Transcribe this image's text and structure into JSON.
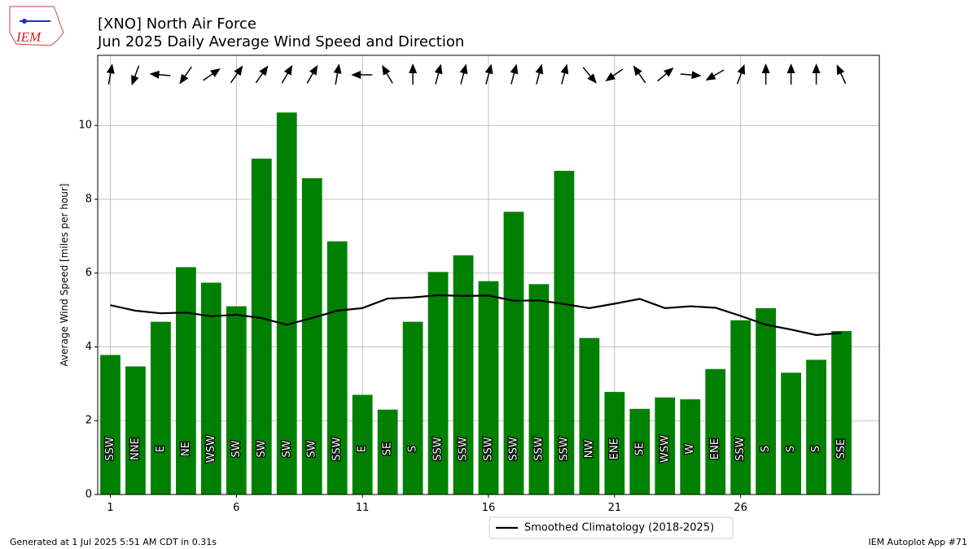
{
  "chart_data": {
    "type": "bar",
    "logo_text": "IEM",
    "title": "[XNO] North Air Force",
    "subtitle": "Jun 2025 Daily Average Wind Speed and Direction",
    "ylabel": "Average Wind Speed [miles per hour]",
    "x": [
      1,
      2,
      3,
      4,
      5,
      6,
      7,
      8,
      9,
      10,
      11,
      12,
      13,
      14,
      15,
      16,
      17,
      18,
      19,
      20,
      21,
      22,
      23,
      24,
      25,
      26,
      27,
      28,
      29,
      30
    ],
    "values": [
      3.78,
      3.47,
      4.68,
      6.16,
      5.74,
      5.1,
      9.1,
      10.35,
      8.57,
      6.86,
      2.7,
      2.3,
      4.68,
      6.03,
      6.48,
      5.78,
      7.66,
      5.7,
      8.77,
      4.24,
      2.78,
      2.32,
      2.63,
      2.58,
      3.4,
      4.72,
      5.05,
      3.3,
      3.65,
      4.43
    ],
    "color": "#008000",
    "direction_labels": [
      "SSW",
      "NNE",
      "E",
      "NE",
      "WSW",
      "SW",
      "SW",
      "SW",
      "SW",
      "SSW",
      "E",
      "SE",
      "S",
      "SSW",
      "SSW",
      "SSW",
      "SSW",
      "SSW",
      "SSW",
      "NW",
      "ENE",
      "SE",
      "WSW",
      "W",
      "ENE",
      "SSW",
      "S",
      "S",
      "S",
      "SSE"
    ],
    "direction_deg": [
      190,
      20,
      95,
      35,
      235,
      215,
      215,
      210,
      210,
      190,
      90,
      150,
      180,
      195,
      195,
      195,
      195,
      195,
      195,
      320,
      55,
      145,
      230,
      275,
      60,
      200,
      180,
      180,
      180,
      155
    ],
    "line": {
      "name": "Smoothed Climatology (2018-2025)",
      "color": "#000000",
      "values": [
        5.13,
        4.98,
        4.91,
        4.93,
        4.83,
        4.87,
        4.78,
        4.6,
        4.78,
        4.98,
        5.05,
        5.31,
        5.34,
        5.4,
        5.38,
        5.39,
        5.25,
        5.26,
        5.16,
        5.05,
        5.17,
        5.3,
        5.05,
        5.1,
        5.06,
        4.84,
        4.6,
        4.47,
        4.32,
        4.38
      ]
    },
    "xlim": [
      0.5,
      31.5
    ],
    "ylim": [
      0,
      11.9
    ],
    "xticks": [
      1,
      6,
      11,
      16,
      21,
      26
    ],
    "yticks": [
      0,
      2,
      4,
      6,
      8,
      10
    ],
    "grid": true,
    "legend": "lower-center",
    "footer_left": "Generated at 1 Jul 2025 5:51 AM CDT in 0.31s",
    "footer_right": "IEM Autoplot App #71"
  }
}
